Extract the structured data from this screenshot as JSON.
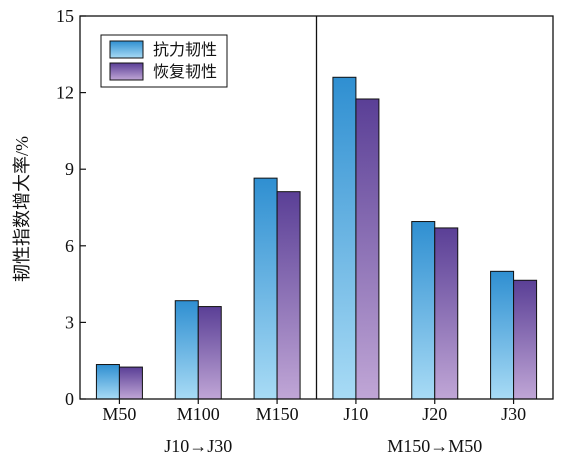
{
  "chart_data": {
    "type": "bar",
    "categories": [
      "M50",
      "M100",
      "M150",
      "J10",
      "J20",
      "J30"
    ],
    "series": [
      {
        "name": "抗力韧性",
        "values": [
          1.35,
          3.85,
          8.65,
          12.6,
          6.95,
          5.0
        ]
      },
      {
        "name": "恢复韧性",
        "values": [
          1.25,
          3.62,
          8.12,
          11.75,
          6.7,
          4.65
        ]
      }
    ],
    "groups": [
      {
        "label": "J10→J30",
        "categories": [
          "M50",
          "M100",
          "M150"
        ]
      },
      {
        "label": "M150→M50",
        "categories": [
          "J10",
          "J20",
          "J30"
        ]
      }
    ],
    "ylabel": "韧性指数增大率/%",
    "xlabel": "",
    "ylim": [
      0,
      15
    ],
    "yticks": [
      0,
      3,
      6,
      9,
      12,
      15
    ],
    "legend_position": "top-left",
    "grid": false,
    "colors": {
      "series1_top": "#2f8fd1",
      "series1_bottom": "#a8dbf5",
      "series2_top": "#5a3f96",
      "series2_bottom": "#c0a6d6",
      "axis": "#111111"
    }
  }
}
